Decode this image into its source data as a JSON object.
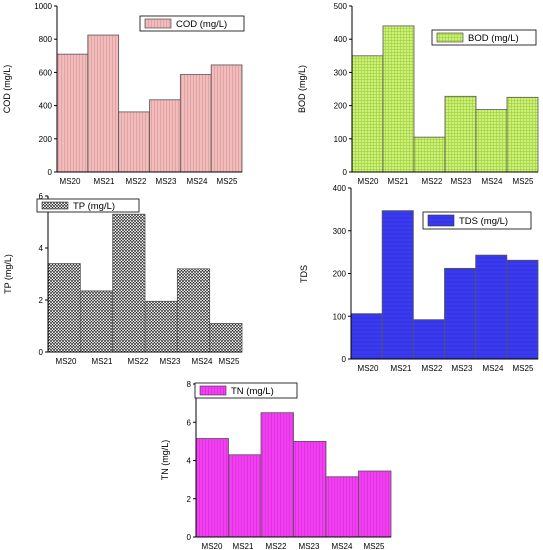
{
  "chart_data": [
    {
      "type": "bar",
      "categories": [
        "MS20",
        "MS21",
        "MS22",
        "MS23",
        "MS24",
        "MS25"
      ],
      "series": [
        {
          "name": "COD (mg/L)",
          "values": [
            710,
            825,
            362,
            435,
            587,
            645
          ]
        }
      ],
      "ylabel": "COD (mg/L)",
      "ylim": [
        0,
        1000
      ],
      "yticks": [
        0,
        200,
        400,
        600,
        800,
        1000
      ],
      "legend_position": "top-right",
      "color": "#f0b9b9",
      "grid": false
    },
    {
      "type": "bar",
      "categories": [
        "MS20",
        "MS21",
        "MS22",
        "MS23",
        "MS24",
        "MS25"
      ],
      "series": [
        {
          "name": "BOD (mg/L)",
          "values": [
            350,
            440,
            105,
            228,
            188,
            225
          ]
        }
      ],
      "ylabel": "BOD (mg/L)",
      "ylim": [
        0,
        500
      ],
      "yticks": [
        0,
        100,
        200,
        300,
        400,
        500
      ],
      "legend_position": "top-right",
      "color": "#c6f06a",
      "grid": false
    },
    {
      "type": "bar",
      "categories": [
        "MS20",
        "MS21",
        "MS22",
        "MS23",
        "MS24",
        "MS25"
      ],
      "series": [
        {
          "name": "TP (mg/L)",
          "values": [
            3.4,
            2.35,
            5.3,
            1.95,
            3.2,
            1.1
          ]
        }
      ],
      "ylabel": "TP (mg/L)",
      "ylim": [
        0,
        6
      ],
      "yticks": [
        0,
        2,
        4,
        6
      ],
      "legend_position": "top-left",
      "color": "#d9d9d9",
      "grid": false
    },
    {
      "type": "bar",
      "categories": [
        "MS20",
        "MS21",
        "MS22",
        "MS23",
        "MS24",
        "MS25"
      ],
      "series": [
        {
          "name": "TDS (mg/L)",
          "values": [
            106,
            347,
            92,
            212,
            243,
            231
          ]
        }
      ],
      "ylabel": "TDS",
      "ylim": [
        0,
        400
      ],
      "yticks": [
        0,
        100,
        200,
        300,
        400
      ],
      "legend_position": "top-right",
      "color": "#3434e8",
      "grid": false
    },
    {
      "type": "bar",
      "categories": [
        "MS20",
        "MS21",
        "MS22",
        "MS23",
        "MS24",
        "MS25"
      ],
      "series": [
        {
          "name": "TN (mg/L)",
          "values": [
            5.15,
            4.3,
            6.5,
            5.0,
            3.15,
            3.45
          ]
        }
      ],
      "ylabel": "TN (mg/L)",
      "ylim": [
        0,
        8
      ],
      "yticks": [
        0,
        2,
        4,
        6,
        8
      ],
      "legend_position": "top-left",
      "color": "#f03cf0",
      "grid": false
    }
  ]
}
